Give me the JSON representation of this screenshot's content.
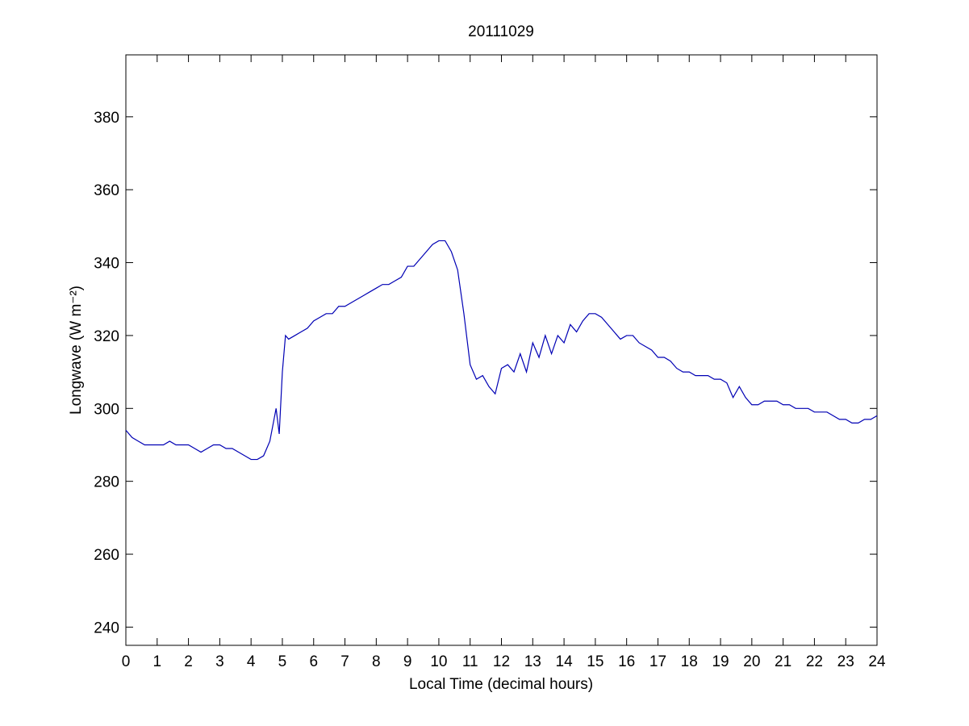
{
  "chart_data": {
    "type": "line",
    "title": "20111029",
    "x_label": "Local Time (decimal hours)",
    "y_label": "Longwave (W m⁻²)",
    "x": [
      0,
      0.2,
      0.4,
      0.6,
      0.8,
      1,
      1.2,
      1.4,
      1.6,
      1.8,
      2,
      2.2,
      2.4,
      2.6,
      2.8,
      3,
      3.2,
      3.4,
      3.6,
      3.8,
      4,
      4.2,
      4.4,
      4.6,
      4.8,
      4.9,
      5,
      5.1,
      5.2,
      5.4,
      5.6,
      5.8,
      6,
      6.2,
      6.4,
      6.6,
      6.8,
      7,
      7.2,
      7.4,
      7.6,
      7.8,
      8,
      8.2,
      8.4,
      8.6,
      8.8,
      9,
      9.2,
      9.4,
      9.6,
      9.8,
      10,
      10.2,
      10.4,
      10.6,
      10.8,
      11,
      11.2,
      11.4,
      11.6,
      11.8,
      12,
      12.2,
      12.4,
      12.6,
      12.8,
      13,
      13.2,
      13.4,
      13.6,
      13.8,
      14,
      14.2,
      14.4,
      14.6,
      14.8,
      15,
      15.2,
      15.4,
      15.6,
      15.8,
      16,
      16.2,
      16.4,
      16.6,
      16.8,
      17,
      17.2,
      17.4,
      17.6,
      17.8,
      18,
      18.2,
      18.4,
      18.6,
      18.8,
      19,
      19.2,
      19.4,
      19.6,
      19.8,
      20,
      20.2,
      20.4,
      20.6,
      20.8,
      21,
      21.2,
      21.4,
      21.6,
      21.8,
      22,
      22.2,
      22.4,
      22.6,
      22.8,
      23,
      23.2,
      23.4,
      23.6,
      23.8,
      24
    ],
    "series": [
      {
        "name": "Longwave",
        "color": "#0000b4",
        "values": [
          294,
          292,
          291,
          290,
          290,
          290,
          290,
          291,
          290,
          290,
          290,
          289,
          288,
          289,
          290,
          290,
          289,
          289,
          288,
          287,
          286,
          286,
          287,
          291,
          300,
          293,
          310,
          320,
          319,
          320,
          321,
          322,
          324,
          325,
          326,
          326,
          328,
          328,
          329,
          330,
          331,
          332,
          333,
          334,
          334,
          335,
          336,
          339,
          339,
          341,
          343,
          345,
          346,
          346,
          343,
          338,
          326,
          312,
          308,
          309,
          306,
          304,
          311,
          312,
          310,
          315,
          310,
          318,
          314,
          320,
          315,
          320,
          318,
          323,
          321,
          324,
          326,
          326,
          325,
          323,
          321,
          319,
          320,
          320,
          318,
          317,
          316,
          314,
          314,
          313,
          311,
          310,
          310,
          309,
          309,
          309,
          308,
          308,
          307,
          303,
          306,
          303,
          301,
          301,
          302,
          302,
          302,
          301,
          301,
          300,
          300,
          300,
          299,
          299,
          299,
          298,
          297,
          297,
          296,
          296,
          297,
          297,
          298
        ]
      }
    ],
    "xlim": [
      0,
      24
    ],
    "ylim": [
      235,
      397
    ],
    "xticks": [
      0,
      1,
      2,
      3,
      4,
      5,
      6,
      7,
      8,
      9,
      10,
      11,
      12,
      13,
      14,
      15,
      16,
      17,
      18,
      19,
      20,
      21,
      22,
      23,
      24
    ],
    "yticks": [
      240,
      260,
      280,
      300,
      320,
      340,
      360,
      380
    ]
  }
}
